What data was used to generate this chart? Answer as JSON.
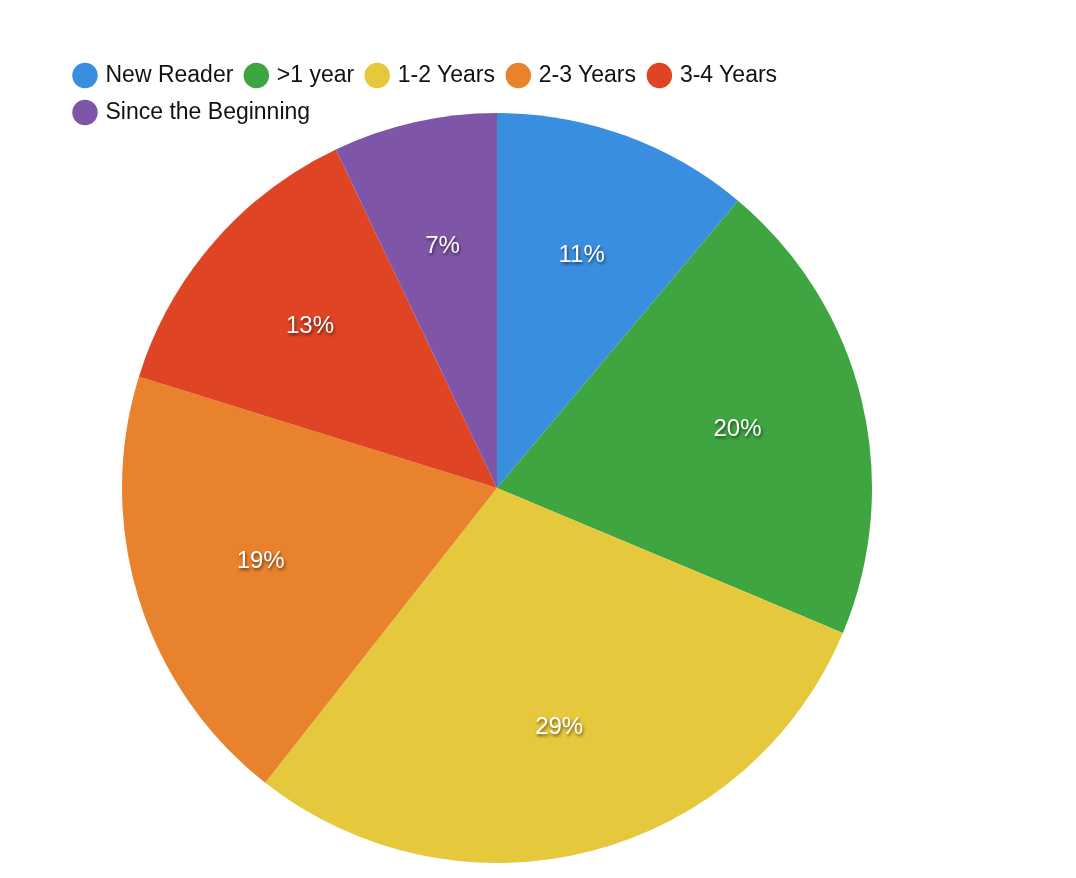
{
  "chart_data": {
    "type": "pie",
    "categories": [
      "New Reader",
      ">1 year",
      "1-2 Years",
      "2-3 Years",
      "3-4 Years",
      "Since the Beginning"
    ],
    "values": [
      11,
      20,
      29,
      19,
      13,
      7
    ],
    "value_labels": [
      "11%",
      "20%",
      "29%",
      "19%",
      "13%",
      "7%"
    ],
    "colors": [
      "#3a8ee0",
      "#3fa540",
      "#e6c83c",
      "#e8822c",
      "#df4424",
      "#7f55a8"
    ],
    "legend": "top left"
  }
}
